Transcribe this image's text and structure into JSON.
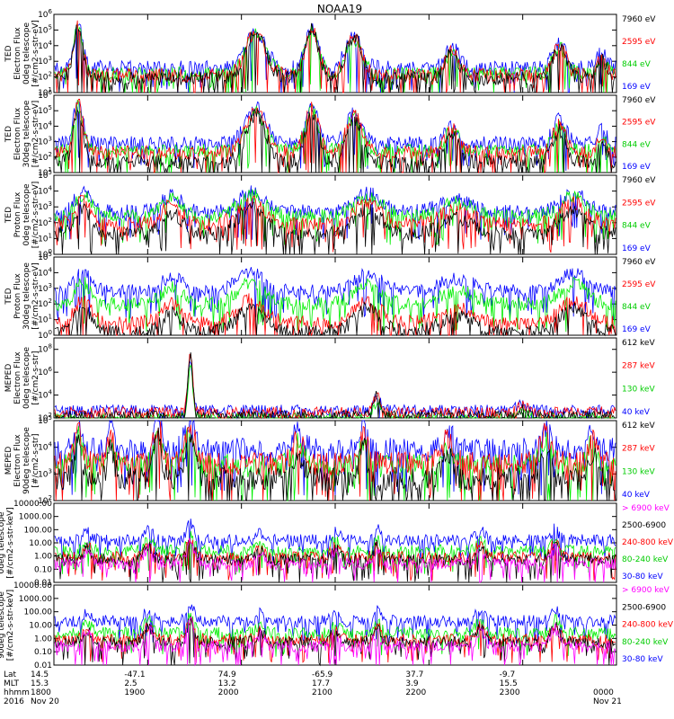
{
  "title": "NOAA19",
  "colors": {
    "blue": "#0000ff",
    "red": "#ff0000",
    "green": "#00ee00",
    "black": "#000000",
    "magenta": "#ff00ff"
  },
  "chart_data": [
    {
      "type": "line",
      "instrument": "TED",
      "ylabel": [
        "TED",
        "Electron Flux",
        "0deg telescope",
        "[#/cm2-s-str-eV]"
      ],
      "scale": "log",
      "ytick_exponents": [
        1,
        2,
        3,
        4,
        5,
        6
      ],
      "ylim": [
        10,
        1000000
      ],
      "series": [
        {
          "name": "7960 eV",
          "color": "#000000",
          "profile": "ted-e",
          "level": 1.9
        },
        {
          "name": "2595 eV",
          "color": "#ff0000",
          "profile": "ted-e",
          "level": 2.1
        },
        {
          "name": "844 eV",
          "color": "#00ee00",
          "profile": "ted-e",
          "level": 2.2
        },
        {
          "name": "169 eV",
          "color": "#0000ff",
          "profile": "ted-e",
          "level": 2.6
        }
      ]
    },
    {
      "type": "line",
      "instrument": "TED",
      "ylabel": [
        "TED",
        "Electron Flux",
        "30deg telescope",
        "[#/cm2-s-str-eV]"
      ],
      "scale": "log",
      "ytick_exponents": [
        1,
        2,
        3,
        4,
        5,
        6
      ],
      "ylim": [
        10,
        1000000
      ],
      "series": [
        {
          "name": "7960 eV",
          "color": "#000000",
          "profile": "ted-e",
          "level": 1.7
        },
        {
          "name": "2595 eV",
          "color": "#ff0000",
          "profile": "ted-e",
          "level": 2.3
        },
        {
          "name": "844 eV",
          "color": "#00ee00",
          "profile": "ted-e",
          "level": 2.4
        },
        {
          "name": "169 eV",
          "color": "#0000ff",
          "profile": "ted-e",
          "level": 2.9
        }
      ]
    },
    {
      "type": "line",
      "instrument": "TED",
      "ylabel": [
        "TED",
        "Proton Flux",
        "0deg telescope",
        "[#/cm2-s-str-eV]"
      ],
      "scale": "log",
      "ytick_exponents": [
        0,
        1,
        2,
        3,
        4,
        5
      ],
      "ylim": [
        1,
        100000
      ],
      "series": [
        {
          "name": "7960 eV",
          "color": "#000000",
          "profile": "ted-p",
          "level": 1.3
        },
        {
          "name": "2595 eV",
          "color": "#ff0000",
          "profile": "ted-p",
          "level": 1.9
        },
        {
          "name": "844 eV",
          "color": "#00ee00",
          "profile": "ted-p",
          "level": 2.4
        },
        {
          "name": "169 eV",
          "color": "#0000ff",
          "profile": "ted-p",
          "level": 2.7
        }
      ]
    },
    {
      "type": "line",
      "instrument": "TED",
      "ylabel": [
        "TED",
        "Proton Flux",
        "30deg telescope",
        "[#/cm2-s-str-eV]"
      ],
      "scale": "log",
      "ytick_exponents": [
        0,
        1,
        2,
        3,
        4,
        5
      ],
      "ylim": [
        1,
        100000
      ],
      "series": [
        {
          "name": "7960 eV",
          "color": "#000000",
          "profile": "ted-p",
          "level": 0.2
        },
        {
          "name": "2595 eV",
          "color": "#ff0000",
          "profile": "ted-p",
          "level": 0.8
        },
        {
          "name": "844 eV",
          "color": "#00ee00",
          "profile": "ted-p",
          "level": 2.0
        },
        {
          "name": "169 eV",
          "color": "#0000ff",
          "profile": "ted-p",
          "level": 2.8
        }
      ]
    },
    {
      "type": "line",
      "instrument": "MEPED",
      "ylabel": [
        "MEPED",
        "Electron Flux",
        "0deg telescope",
        "[#/cm2-s-str]"
      ],
      "scale": "log",
      "ytick_exponents": [
        2,
        4,
        6,
        8
      ],
      "ylim": [
        100,
        1000000000
      ],
      "series": [
        {
          "name": "612 keV",
          "color": "#000000",
          "profile": "meped0",
          "level": 2.2
        },
        {
          "name": "287 keV",
          "color": "#ff0000",
          "profile": "meped0",
          "level": 2.5
        },
        {
          "name": "130 keV",
          "color": "#00ee00",
          "profile": "meped0",
          "level": 2.0
        },
        {
          "name": "40 keV",
          "color": "#0000ff",
          "profile": "meped0",
          "level": 2.7
        }
      ]
    },
    {
      "type": "line",
      "instrument": "MEPED",
      "ylabel": [
        "MEPED",
        "Electron Flux",
        "90deg telescope",
        "[#/cm2-s-str]"
      ],
      "scale": "log",
      "ytick_exponents": [
        2,
        3,
        4,
        5
      ],
      "ylim": [
        100,
        100000
      ],
      "series": [
        {
          "name": "612 keV",
          "color": "#000000",
          "profile": "meped90",
          "level": 2.8
        },
        {
          "name": "287 keV",
          "color": "#ff0000",
          "profile": "meped90",
          "level": 3.4
        },
        {
          "name": "130 keV",
          "color": "#00ee00",
          "profile": "meped90",
          "level": 3.3
        },
        {
          "name": "40 keV",
          "color": "#0000ff",
          "profile": "meped90",
          "level": 3.9
        }
      ]
    },
    {
      "type": "line",
      "instrument": "MEPED",
      "ylabel": [
        "Proton Flux",
        "0deg telescope",
        "[#/cm2-s-str-keV]"
      ],
      "scale": "log",
      "ytick_labels": [
        "0.01",
        "0.10",
        "1.00",
        "10.00",
        "100.00",
        "1000.00",
        "10000.00"
      ],
      "ylim": [
        0.01,
        10000
      ],
      "series": [
        {
          "name": "> 6900 keV",
          "color": "#ff00ff",
          "profile": "mepedp",
          "level": -0.6
        },
        {
          "name": "2500-6900",
          "color": "#000000",
          "profile": "mepedp",
          "level": -0.3
        },
        {
          "name": "240-800 keV",
          "color": "#ff0000",
          "profile": "mepedp",
          "level": -0.1
        },
        {
          "name": "80-240 keV",
          "color": "#00ee00",
          "profile": "mepedp",
          "level": 0.4
        },
        {
          "name": "30-80 keV",
          "color": "#0000ff",
          "profile": "mepedp",
          "level": 1.2
        }
      ]
    },
    {
      "type": "line",
      "instrument": "MEPED",
      "ylabel": [
        "Proton Flux",
        "90deg telescope",
        "[#/cm2-s-str-keV]"
      ],
      "scale": "log",
      "ytick_labels": [
        "0.01",
        "0.10",
        "1.00",
        "10.00",
        "100.00",
        "1000.00",
        "10000.00"
      ],
      "ylim": [
        0.01,
        10000
      ],
      "series": [
        {
          "name": "> 6900 keV",
          "color": "#ff00ff",
          "profile": "mepedp",
          "level": -0.6
        },
        {
          "name": "2500-6900",
          "color": "#000000",
          "profile": "mepedp",
          "level": -0.3
        },
        {
          "name": "240-800 keV",
          "color": "#ff0000",
          "profile": "mepedp",
          "level": -0.1
        },
        {
          "name": "80-240 keV",
          "color": "#00ee00",
          "profile": "mepedp",
          "level": 0.4
        },
        {
          "name": "30-80 keV",
          "color": "#0000ff",
          "profile": "mepedp",
          "level": 1.3
        }
      ]
    }
  ],
  "footer": {
    "row_labels": [
      "Lat",
      "MLT",
      "hhmm",
      "2016"
    ],
    "columns": [
      {
        "lat": "14.5",
        "mlt": "15.3",
        "hhmm": "1800",
        "date": "Nov 20"
      },
      {
        "lat": "-47.1",
        "mlt": "2.5",
        "hhmm": "1900",
        "date": ""
      },
      {
        "lat": "74.9",
        "mlt": "13.2",
        "hhmm": "2000",
        "date": ""
      },
      {
        "lat": "-65.9",
        "mlt": "17.7",
        "hhmm": "2100",
        "date": ""
      },
      {
        "lat": "37.7",
        "mlt": "3.9",
        "hhmm": "2200",
        "date": ""
      },
      {
        "lat": "-9.7",
        "mlt": "15.5",
        "hhmm": "2300",
        "date": ""
      },
      {
        "lat": "",
        "mlt": "",
        "hhmm": "0000",
        "date": "Nov 21"
      }
    ]
  }
}
